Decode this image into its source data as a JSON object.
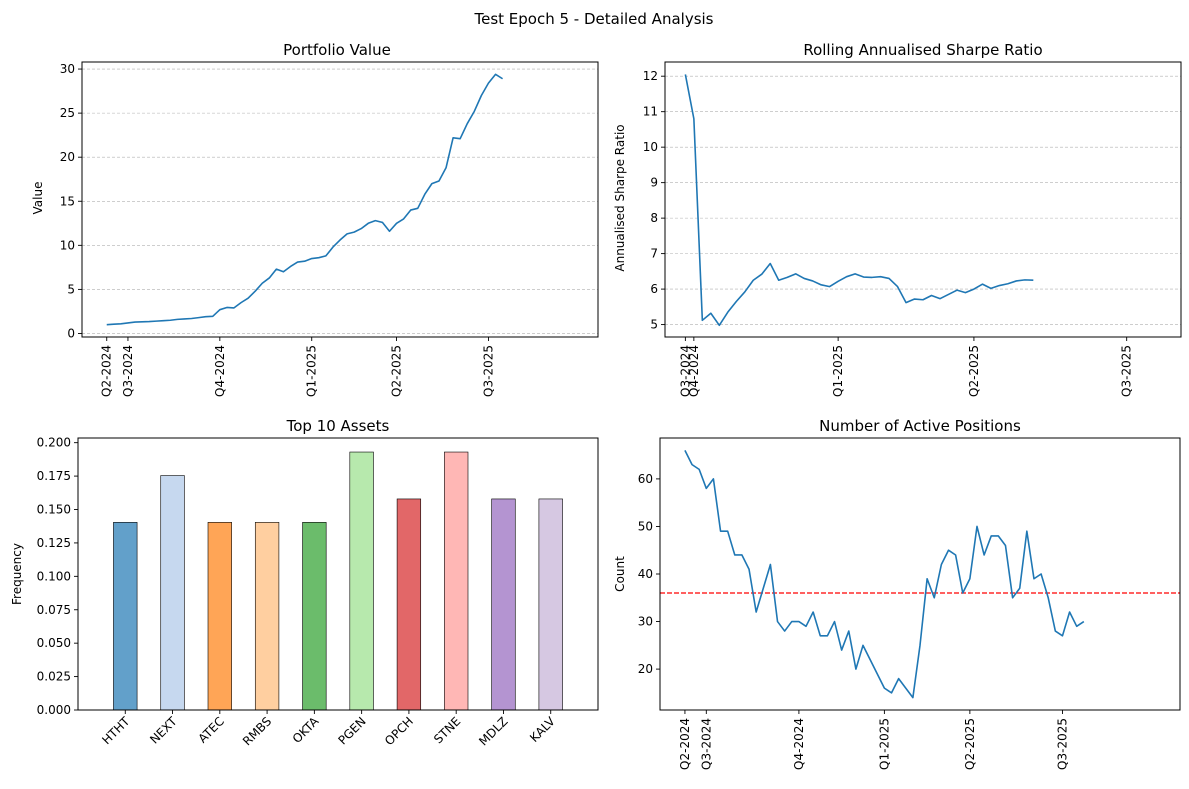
{
  "figure": {
    "title": "Test Epoch 5 - Detailed Analysis"
  },
  "chart_data": [
    {
      "id": "portfolio",
      "type": "line",
      "title": "Portfolio Value",
      "xlabel": "",
      "ylabel": "Value",
      "xlim": [
        -3.5,
        69.5
      ],
      "ylim": [
        -0.4,
        30.8
      ],
      "yticks": [
        0,
        5,
        10,
        15,
        20,
        25,
        30
      ],
      "xticks": [
        {
          "x": 0,
          "label": "Q2-2024"
        },
        {
          "x": 3,
          "label": "Q3-2024"
        },
        {
          "x": 16,
          "label": "Q4-2024"
        },
        {
          "x": 29,
          "label": "Q1-2025"
        },
        {
          "x": 41,
          "label": "Q2-2025"
        },
        {
          "x": 54,
          "label": "Q3-2025"
        }
      ],
      "grid": "y",
      "color": "#1f77b4",
      "series": [
        {
          "values": [
            1.0,
            1.05,
            1.1,
            1.2,
            1.3,
            1.32,
            1.35,
            1.4,
            1.45,
            1.5,
            1.6,
            1.65,
            1.7,
            1.8,
            1.9,
            1.95,
            2.7,
            2.95,
            2.9,
            3.5,
            4.0,
            4.8,
            5.7,
            6.3,
            7.3,
            7.0,
            7.6,
            8.1,
            8.2,
            8.5,
            8.6,
            8.8,
            9.8,
            10.6,
            11.3,
            11.5,
            11.9,
            12.5,
            12.8,
            12.6,
            11.6,
            12.5,
            13.0,
            14.0,
            14.2,
            15.8,
            17.0,
            17.3,
            18.8,
            22.2,
            22.1,
            23.8,
            25.2,
            27.0,
            28.4,
            29.4,
            28.9
          ]
        }
      ]
    },
    {
      "id": "sharpe",
      "type": "line",
      "title": "Rolling Annualised Sharpe Ratio",
      "xlabel": "",
      "ylabel": "Annualised Sharpe Ratio",
      "xlim": [
        -2.4,
        58.4
      ],
      "ylim": [
        4.65,
        12.4
      ],
      "yticks": [
        5,
        6,
        7,
        8,
        9,
        10,
        11,
        12
      ],
      "xticks": [
        {
          "x": 0,
          "label": "Q3-2024"
        },
        {
          "x": 1,
          "label": "Q4-2024"
        },
        {
          "x": 18,
          "label": "Q1-2025"
        },
        {
          "x": 34,
          "label": "Q2-2025"
        },
        {
          "x": 52,
          "label": "Q3-2025"
        }
      ],
      "grid": "y",
      "color": "#1f77b4",
      "series": [
        {
          "values": [
            12.05,
            10.8,
            5.12,
            5.32,
            4.98,
            5.35,
            5.65,
            5.92,
            6.25,
            6.42,
            6.72,
            6.25,
            6.33,
            6.43,
            6.3,
            6.23,
            6.12,
            6.07,
            6.22,
            6.35,
            6.43,
            6.34,
            6.33,
            6.35,
            6.3,
            6.07,
            5.62,
            5.72,
            5.7,
            5.82,
            5.73,
            5.85,
            5.97,
            5.9,
            6.0,
            6.14,
            6.02,
            6.1,
            6.15,
            6.23,
            6.26,
            6.25
          ]
        }
      ]
    },
    {
      "id": "assets",
      "type": "bar",
      "title": "Top 10 Assets",
      "xlabel": "",
      "ylabel": "Frequency",
      "ylim": [
        0,
        0.2035
      ],
      "yticks": [
        0.0,
        0.025,
        0.05,
        0.075,
        0.1,
        0.125,
        0.15,
        0.175,
        0.2
      ],
      "ytick_labels": [
        "0.000",
        "0.025",
        "0.050",
        "0.075",
        "0.100",
        "0.125",
        "0.150",
        "0.175",
        "0.200"
      ],
      "categories": [
        "HTHT",
        "NEXT",
        "ATEC",
        "RMBS",
        "OKTA",
        "PGEN",
        "OPCH",
        "STNE",
        "MDLZ",
        "KALV"
      ],
      "values": [
        0.1404,
        0.1754,
        0.1404,
        0.1404,
        0.1404,
        0.193,
        0.1579,
        0.193,
        0.1579,
        0.1579
      ],
      "colors": [
        "#1f77b4",
        "#aec7e8",
        "#ff7f0e",
        "#ffbb78",
        "#2ca02c",
        "#98df8a",
        "#d62728",
        "#ff9896",
        "#9467bd",
        "#c5b0d5"
      ]
    },
    {
      "id": "positions",
      "type": "line",
      "title": "Number of Active Positions",
      "xlabel": "",
      "ylabel": "Count",
      "xlim": [
        -3.5,
        69.5
      ],
      "ylim": [
        11.4,
        68.6
      ],
      "yticks": [
        20,
        30,
        40,
        50,
        60
      ],
      "xticks": [
        {
          "x": 0,
          "label": "Q2-2024"
        },
        {
          "x": 3,
          "label": "Q3-2024"
        },
        {
          "x": 16,
          "label": "Q4-2024"
        },
        {
          "x": 28,
          "label": "Q1-2025"
        },
        {
          "x": 40,
          "label": "Q2-2025"
        },
        {
          "x": 53,
          "label": "Q3-2025"
        }
      ],
      "grid": "none",
      "color": "#1f77b4",
      "mean_line": {
        "y": 36,
        "color": "#ff0000"
      },
      "series": [
        {
          "values": [
            66,
            63,
            62,
            58,
            60,
            49,
            49,
            44,
            44,
            41,
            32,
            37,
            42,
            30,
            28,
            30,
            30,
            29,
            32,
            27,
            27,
            30,
            24,
            28,
            20,
            25,
            22,
            19,
            16,
            15,
            18,
            16,
            14,
            25,
            39,
            35,
            42,
            45,
            44,
            36,
            39,
            50,
            44,
            48,
            48,
            46,
            35,
            37,
            49,
            39,
            40,
            35,
            28,
            27,
            32,
            29,
            30
          ]
        }
      ]
    }
  ]
}
